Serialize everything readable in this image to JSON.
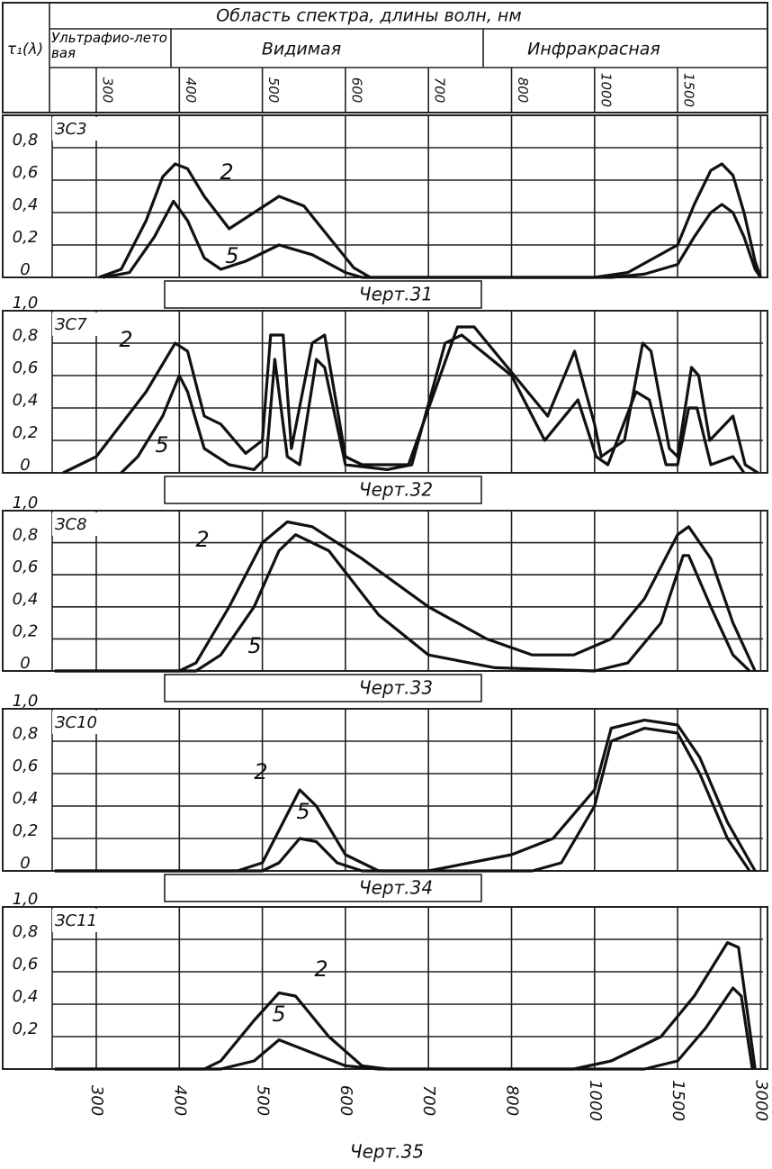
{
  "header": {
    "title": "Область спектра, длины волн, нм",
    "y_label": "τ₁(λ)",
    "regions": [
      "Ультрафио-летовая",
      "Видимая",
      "Инфракрасная"
    ],
    "ticks": [
      300,
      400,
      500,
      600,
      700,
      800,
      1000,
      1500
    ]
  },
  "chart_data": [
    {
      "type": "line",
      "label": "ЗС3",
      "caption": "Черт.31",
      "xlim": [
        250,
        3000
      ],
      "xticks": [
        300,
        400,
        500,
        600,
        700,
        800,
        1000,
        1500,
        3000
      ],
      "ylim": [
        0,
        1
      ],
      "yticks": [
        0,
        {
          "value": 0.2,
          "label": "0,2"
        },
        {
          "value": 0.4,
          "label": "0,4"
        },
        {
          "value": 0.6,
          "label": "0,6"
        },
        {
          "value": 0.8,
          "label": "0,8"
        }
      ],
      "grid": true,
      "series": [
        {
          "name": "2",
          "color": "#111",
          "x": [
            303,
            330,
            360,
            380,
            395,
            410,
            430,
            460,
            490,
            520,
            550,
            580,
            610,
            630,
            800,
            1000,
            1200,
            1500,
            1800,
            2100,
            2300,
            2500,
            2700,
            2900,
            3000
          ],
          "values": [
            0,
            0.05,
            0.35,
            0.62,
            0.7,
            0.67,
            0.5,
            0.3,
            0.4,
            0.5,
            0.44,
            0.25,
            0.06,
            0,
            0,
            0,
            0.03,
            0.2,
            0.45,
            0.66,
            0.7,
            0.63,
            0.4,
            0.1,
            0
          ]
        },
        {
          "name": "5",
          "color": "#111",
          "x": [
            308,
            340,
            370,
            393,
            410,
            430,
            450,
            480,
            520,
            560,
            600,
            620,
            800,
            1100,
            1300,
            1500,
            1800,
            2100,
            2300,
            2500,
            2700,
            2900,
            3000
          ],
          "values": [
            0,
            0.03,
            0.25,
            0.47,
            0.35,
            0.12,
            0.05,
            0.1,
            0.2,
            0.14,
            0.03,
            0,
            0,
            0,
            0.02,
            0.08,
            0.25,
            0.4,
            0.45,
            0.4,
            0.25,
            0.05,
            0
          ]
        }
      ]
    },
    {
      "type": "line",
      "label": "ЗС7",
      "caption": "Черт.32",
      "xlim": [
        250,
        3000
      ],
      "xticks": [
        300,
        400,
        500,
        600,
        700,
        800,
        1000,
        1500,
        3000
      ],
      "ylim": [
        0,
        1
      ],
      "yticks": [
        0,
        {
          "value": 0.2,
          "label": "0,2"
        },
        {
          "value": 0.4,
          "label": "0,4"
        },
        {
          "value": 0.6,
          "label": "0,6"
        },
        {
          "value": 0.8,
          "label": "0,8"
        },
        {
          "value": 1,
          "label": "1,0"
        }
      ],
      "grid": true,
      "series": [
        {
          "name": "2",
          "color": "#111",
          "x": [
            260,
            300,
            360,
            395,
            410,
            430,
            450,
            480,
            500,
            510,
            525,
            535,
            560,
            575,
            600,
            620,
            676,
            735,
            755,
            887,
            952,
            1000,
            1040,
            1180,
            1290,
            1340,
            1450,
            1500,
            1750,
            1880,
            2080,
            2500,
            2720,
            2950
          ],
          "values": [
            0,
            0.1,
            0.5,
            0.8,
            0.75,
            0.35,
            0.3,
            0.12,
            0.2,
            0.85,
            0.85,
            0.15,
            0.8,
            0.85,
            0.1,
            0.05,
            0.05,
            0.9,
            0.9,
            0.35,
            0.75,
            0.3,
            0.1,
            0.2,
            0.8,
            0.75,
            0.15,
            0.1,
            0.65,
            0.6,
            0.2,
            0.35,
            0.05,
            0
          ]
        },
        {
          "name": "5",
          "color": "#111",
          "x": [
            330,
            350,
            380,
            400,
            410,
            430,
            460,
            490,
            505,
            515,
            530,
            545,
            565,
            575,
            600,
            650,
            680,
            720,
            740,
            800,
            880,
            960,
            1010,
            1080,
            1250,
            1330,
            1430,
            1500,
            1700,
            1850,
            2100,
            2500,
            2700
          ],
          "values": [
            0,
            0.1,
            0.35,
            0.6,
            0.5,
            0.15,
            0.05,
            0.02,
            0.1,
            0.7,
            0.1,
            0.05,
            0.7,
            0.65,
            0.05,
            0.02,
            0.05,
            0.8,
            0.85,
            0.6,
            0.2,
            0.45,
            0.1,
            0.05,
            0.5,
            0.45,
            0.05,
            0.05,
            0.4,
            0.4,
            0.05,
            0.1,
            0
          ]
        }
      ]
    },
    {
      "type": "line",
      "label": "ЗС8",
      "caption": "Черт.33",
      "xlim": [
        250,
        3000
      ],
      "xticks": [
        300,
        400,
        500,
        600,
        700,
        800,
        1000,
        1500,
        3000
      ],
      "ylim": [
        0,
        1
      ],
      "yticks": [
        0,
        {
          "value": 0.2,
          "label": "0,2"
        },
        {
          "value": 0.4,
          "label": "0,4"
        },
        {
          "value": 0.6,
          "label": "0,6"
        },
        {
          "value": 0.8,
          "label": "0,8"
        },
        {
          "value": 1,
          "label": "1,0"
        }
      ],
      "grid": true,
      "series": [
        {
          "name": "2",
          "color": "#111",
          "x": [
            250,
            400,
            420,
            460,
            500,
            530,
            560,
            620,
            700,
            770,
            850,
            950,
            1100,
            1300,
            1500,
            1700,
            2100,
            2500,
            2900
          ],
          "values": [
            0,
            0,
            0.05,
            0.4,
            0.8,
            0.93,
            0.9,
            0.7,
            0.4,
            0.2,
            0.1,
            0.1,
            0.2,
            0.45,
            0.85,
            0.9,
            0.7,
            0.3,
            0
          ]
        },
        {
          "name": "5",
          "color": "#111",
          "x": [
            250,
            420,
            450,
            490,
            520,
            540,
            580,
            640,
            700,
            780,
            1000,
            1200,
            1400,
            1600,
            1700,
            2100,
            2500,
            2800
          ],
          "values": [
            0,
            0,
            0.1,
            0.4,
            0.75,
            0.85,
            0.75,
            0.35,
            0.1,
            0.02,
            0,
            0.05,
            0.3,
            0.72,
            0.72,
            0.4,
            0.1,
            0
          ]
        }
      ]
    },
    {
      "type": "line",
      "label": "ЗС10",
      "caption": "Черт.34",
      "xlim": [
        250,
        3000
      ],
      "xticks": [
        300,
        400,
        500,
        600,
        700,
        800,
        1000,
        1500,
        3000
      ],
      "ylim": [
        0,
        1
      ],
      "yticks": [
        0,
        {
          "value": 0.2,
          "label": "0,2"
        },
        {
          "value": 0.4,
          "label": "0,4"
        },
        {
          "value": 0.6,
          "label": "0,6"
        },
        {
          "value": 0.8,
          "label": "0,8"
        },
        {
          "value": 1,
          "label": "1,0"
        }
      ],
      "grid": true,
      "series": [
        {
          "name": "2",
          "color": "#111",
          "x": [
            250,
            470,
            500,
            530,
            545,
            565,
            600,
            640,
            700,
            800,
            900,
            1000,
            1100,
            1300,
            1500,
            1900,
            2400,
            2900
          ],
          "values": [
            0,
            0,
            0.05,
            0.35,
            0.5,
            0.4,
            0.1,
            0,
            0,
            0.1,
            0.2,
            0.5,
            0.88,
            0.93,
            0.9,
            0.7,
            0.3,
            0
          ]
        },
        {
          "name": "5",
          "color": "#111",
          "x": [
            250,
            500,
            520,
            545,
            565,
            590,
            620,
            850,
            920,
            1000,
            1100,
            1300,
            1500,
            1900,
            2400,
            2800
          ],
          "values": [
            0,
            0,
            0.05,
            0.2,
            0.18,
            0.05,
            0,
            0,
            0.05,
            0.4,
            0.8,
            0.88,
            0.85,
            0.6,
            0.2,
            0
          ]
        }
      ]
    },
    {
      "type": "line",
      "label": "ЗС11",
      "caption": "Черт.35",
      "xlim": [
        250,
        3000
      ],
      "xticks": [
        300,
        400,
        500,
        600,
        700,
        800,
        1000,
        1500,
        3000
      ],
      "ylim": [
        0,
        1
      ],
      "yticks": [
        {
          "value": 0.2,
          "label": "0,2"
        },
        {
          "value": 0.4,
          "label": "0,4"
        },
        {
          "value": 0.6,
          "label": "0,6"
        },
        {
          "value": 0.8,
          "label": "0,8"
        },
        {
          "value": 1,
          "label": "1,0"
        }
      ],
      "grid": true,
      "series": [
        {
          "name": "2",
          "color": "#111",
          "x": [
            250,
            430,
            450,
            490,
            520,
            540,
            580,
            620,
            650,
            950,
            1100,
            1400,
            1800,
            2400,
            2600,
            2900
          ],
          "values": [
            0,
            0,
            0.05,
            0.3,
            0.47,
            0.45,
            0.2,
            0.02,
            0,
            0,
            0.05,
            0.2,
            0.45,
            0.78,
            0.75,
            0
          ]
        },
        {
          "name": "5",
          "color": "#111",
          "x": [
            250,
            450,
            490,
            520,
            560,
            600,
            640,
            1300,
            1500,
            2000,
            2500,
            2650,
            2850
          ],
          "values": [
            0,
            0,
            0.05,
            0.18,
            0.1,
            0.02,
            0,
            0,
            0.05,
            0.25,
            0.5,
            0.45,
            0
          ]
        }
      ]
    }
  ]
}
